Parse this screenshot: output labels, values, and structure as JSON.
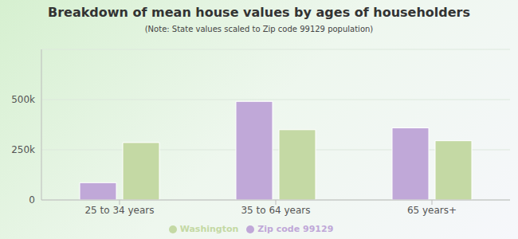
{
  "chart_data": {
    "type": "bar",
    "title": "Breakdown of mean house values by ages of householders",
    "subtitle": "(Note: State values scaled to Zip code 99129 population)",
    "categories": [
      "25 to 34 years",
      "35 to 64 years",
      "65 years+"
    ],
    "series": [
      {
        "name": "Zip code 99129",
        "color": "#c0a8d8",
        "values": [
          86000,
          491000,
          359000
        ]
      },
      {
        "name": "Washington",
        "color": "#c4d9a4",
        "values": [
          286000,
          350000,
          295000
        ]
      }
    ],
    "ylim": [
      0,
      750000
    ],
    "yticks": [
      0,
      {
        "value": 250000,
        "label": "250k"
      },
      {
        "value": 500000,
        "label": "500k"
      }
    ],
    "grid": true,
    "legend": "bottom"
  }
}
